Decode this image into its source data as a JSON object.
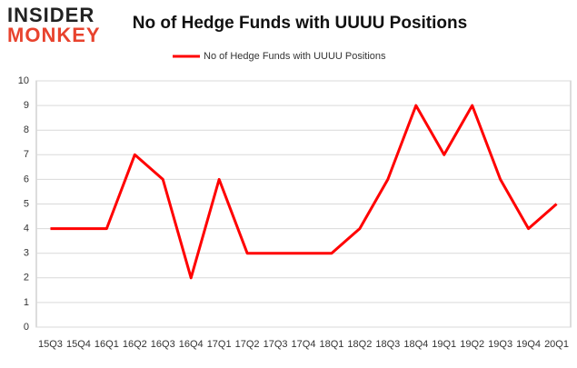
{
  "logo": {
    "top": "INSIDER",
    "bottom": "MONKEY"
  },
  "chart_data": {
    "type": "line",
    "title": "No of Hedge Funds with UUUU Positions",
    "categories": [
      "15Q3",
      "15Q4",
      "16Q1",
      "16Q2",
      "16Q3",
      "16Q4",
      "17Q1",
      "17Q2",
      "17Q3",
      "17Q4",
      "18Q1",
      "18Q2",
      "18Q3",
      "18Q4",
      "19Q1",
      "19Q2",
      "19Q3",
      "19Q4",
      "20Q1"
    ],
    "series": [
      {
        "name": "No of Hedge Funds with UUUU Positions",
        "color": "#ff0000",
        "values": [
          4,
          4,
          4,
          7,
          6,
          2,
          6,
          3,
          3,
          3,
          3,
          4,
          6,
          9,
          7,
          9,
          6,
          4,
          5
        ]
      }
    ],
    "ylim": [
      0,
      10
    ],
    "yticks": [
      0,
      1,
      2,
      3,
      4,
      5,
      6,
      7,
      8,
      9,
      10
    ],
    "grid": true,
    "legend": "top"
  }
}
